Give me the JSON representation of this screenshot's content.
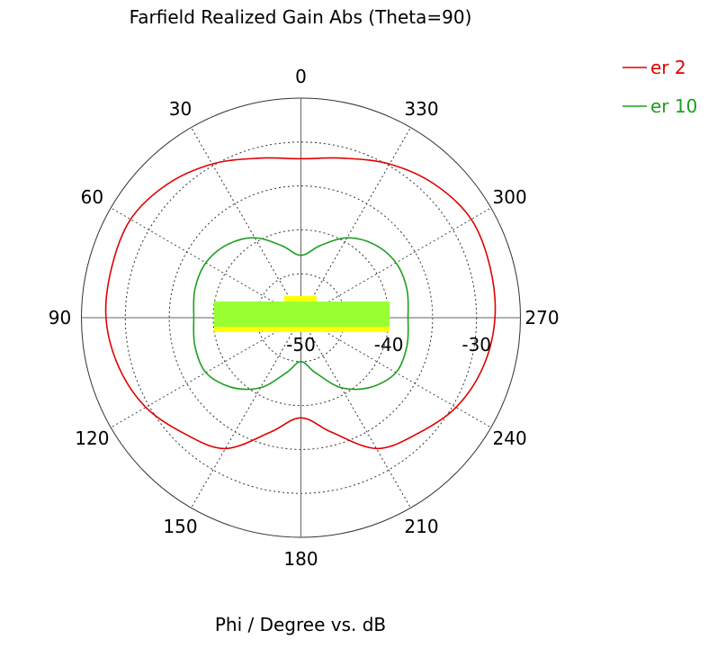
{
  "chart_data": {
    "type": "polar-line",
    "title": "Farfield Realized Gain Abs (Theta=90)",
    "xlabel": "Phi / Degree vs. dB",
    "angle_ticks": [
      0,
      30,
      60,
      90,
      120,
      150,
      180,
      210,
      240,
      270,
      300,
      330
    ],
    "angle_tick_labels": [
      "0",
      "30",
      "60",
      "90",
      "120",
      "150",
      "180",
      "210",
      "240",
      "270",
      "300",
      "330"
    ],
    "radial_range_db": [
      -50,
      -25
    ],
    "radial_rings_db": [
      -45,
      -40,
      -35,
      -30,
      -25
    ],
    "radial_tick_labels": [
      "-50",
      "-40",
      "-30"
    ],
    "radial_tick_values": [
      -50,
      -40,
      -30
    ],
    "angle_direction": "counterclockwise, 0 at top",
    "grid": true,
    "legend_position": "top-right",
    "phi": [
      0,
      15,
      30,
      45,
      60,
      75,
      90,
      105,
      120,
      135,
      150,
      165,
      180,
      195,
      210,
      225,
      240,
      255,
      270,
      285,
      300,
      315,
      330,
      345
    ],
    "series": [
      {
        "name": "er 2",
        "color": "#e00000",
        "values": [
          -31.9,
          -31.2,
          -29.8,
          -28.5,
          -27.6,
          -27.7,
          -27.8,
          -28.5,
          -29.6,
          -31.3,
          -32.8,
          -36.5,
          -38.6,
          -36.5,
          -32.8,
          -31.3,
          -29.6,
          -28.5,
          -27.9,
          -27.7,
          -27.6,
          -28.5,
          -29.8,
          -31.2
        ]
      },
      {
        "name": "er 10",
        "color": "#1e9e1e",
        "values": [
          -42.9,
          -41.5,
          -39.5,
          -38.2,
          -37.5,
          -37.5,
          -37.8,
          -37.5,
          -37.5,
          -38.8,
          -40.8,
          -43.5,
          -45.0,
          -43.5,
          -40.8,
          -38.8,
          -37.5,
          -37.5,
          -37.8,
          -37.5,
          -37.5,
          -38.2,
          -39.5,
          -41.5
        ]
      }
    ],
    "overlay_colors": {
      "substrate": "#99ff33",
      "metal": "#ffff00"
    }
  }
}
